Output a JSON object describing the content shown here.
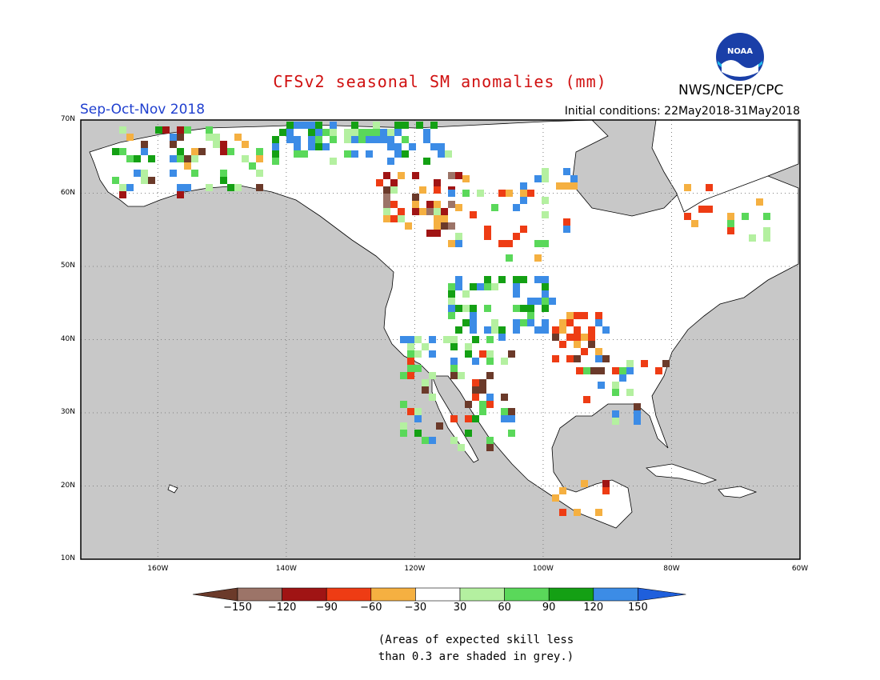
{
  "title": "CFSv2 seasonal SM anomalies (mm)",
  "period": "Sep-Oct-Nov 2018",
  "initial_conditions": "Initial conditions: 22May2018-31May2018",
  "agency": "NWS/NCEP/CPC",
  "logo_text": "NOAA",
  "colors": {
    "title": "#d01010",
    "period": "#1f3fcf",
    "ocean": "#c8c8c8",
    "land": "#ffffff",
    "grid": "#808080"
  },
  "map": {
    "lon_range": [
      -172,
      -60
    ],
    "lat_range": [
      10,
      70
    ],
    "lat_ticks": [
      "10N",
      "20N",
      "30N",
      "40N",
      "50N",
      "60N",
      "70N"
    ],
    "lon_ticks": [
      "160W",
      "140W",
      "120W",
      "100W",
      "80W",
      "60W"
    ]
  },
  "colorbar": {
    "bins": [
      {
        "color": "#6b3a2a"
      },
      {
        "color": "#9c7468"
      },
      {
        "color": "#a01414"
      },
      {
        "color": "#ee3c14"
      },
      {
        "color": "#f5b041"
      },
      {
        "color": "#ffffff"
      },
      {
        "color": "#b4f0a0"
      },
      {
        "color": "#5ad85a"
      },
      {
        "color": "#14a014"
      },
      {
        "color": "#3c8ce6"
      },
      {
        "color": "#1f5fdc"
      }
    ],
    "labels": [
      "−150",
      "−120",
      "−90",
      "−60",
      "−30",
      "30",
      "60",
      "90",
      "120",
      "150"
    ]
  },
  "note_lines": [
    "(Areas of expected skill less",
    "than 0.3 are shaded in grey.)"
  ]
}
